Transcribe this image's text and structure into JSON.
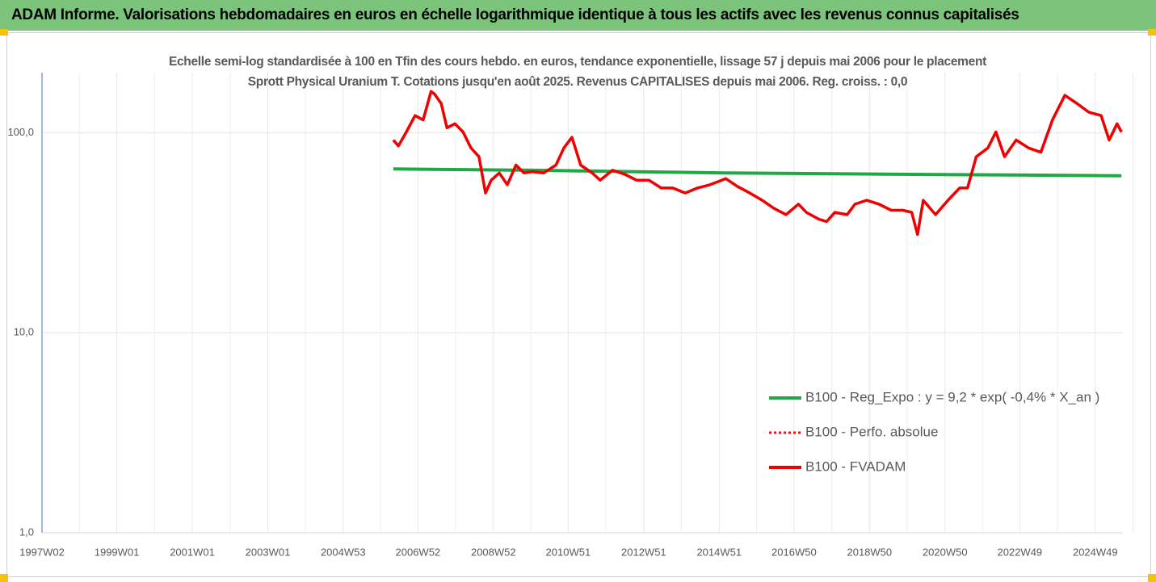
{
  "chart_data": {
    "type": "line",
    "title": "ADAM Informe. Valorisations hebdomadaires en euros en échelle logarithmique identique à tous les actifs avec les revenus connus capitalisés",
    "subtitle": "Echelle semi-log standardisée à 100 en Tfin des cours hebdo. en euros, tendance exponentielle, lissage 57 j depuis mai 2006 pour le placement Sprott Physical Uranium T. Cotations jusqu'en août 2025. Revenus CAPITALISES depuis mai 2006. Reg. croiss. : 0,0",
    "log_scale": true,
    "grid": true,
    "legend": "lower right",
    "ylim": [
      1,
      200
    ],
    "yticks": [
      {
        "value": 1,
        "label": "1,0"
      },
      {
        "value": 10,
        "label": "10,0"
      },
      {
        "value": 100,
        "label": "100,0"
      }
    ],
    "xlim": [
      "1997W02",
      "2025W35"
    ],
    "xticks": [
      "1997W02",
      "1999W01",
      "2001W01",
      "2003W01",
      "2004W53",
      "2006W52",
      "2008W52",
      "2010W51",
      "2012W51",
      "2014W51",
      "2016W50",
      "2018W50",
      "2020W50",
      "2022W49",
      "2024W49"
    ],
    "series": [
      {
        "name": "B100 - Reg_Expo : y = 9,2 * exp( -0,4% *  X_an )",
        "color": "#1fa846",
        "style": "solid",
        "x": [
          "2006W18",
          "2010W01",
          "2015W08",
          "2020W04",
          "2025W33"
        ],
        "values": [
          66,
          65,
          63,
          62,
          61
        ]
      },
      {
        "name": "B100 - Perfo. absolue",
        "color": "#e8141a",
        "style": "dotted",
        "x": [],
        "values": []
      },
      {
        "name": "B100 - FVADAM",
        "color": "#f00000",
        "style": "solid",
        "x": [
          "2006W18",
          "2006W25",
          "2006W36",
          "2006W48",
          "2007W07",
          "2007W18",
          "2007W23",
          "2007W32",
          "2007W40",
          "2007W51",
          "2008W10",
          "2008W21",
          "2008W32",
          "2008W41",
          "2008W49",
          "2009W08",
          "2009W19",
          "2009W31",
          "2009W42",
          "2010W01",
          "2010W17",
          "2010W34",
          "2010W45",
          "2011W04",
          "2011W16",
          "2011W32",
          "2011W43",
          "2012W08",
          "2012W25",
          "2012W41",
          "2013W06",
          "2013W23",
          "2013W39",
          "2014W04",
          "2014W21",
          "2014W38",
          "2015W08",
          "2015W24",
          "2015W41",
          "2016W06",
          "2016W22",
          "2016W39",
          "2017W04",
          "2017W15",
          "2017W32",
          "2017W43",
          "2018W02",
          "2018W19",
          "2018W30",
          "2018W46",
          "2019W11",
          "2019W28",
          "2019W44",
          "2020W04",
          "2020W12",
          "2020W20",
          "2020W37",
          "2021W02",
          "2021W18",
          "2021W29",
          "2021W41",
          "2022W05",
          "2022W16",
          "2022W28",
          "2022W44",
          "2023W09",
          "2023W26",
          "2023W42",
          "2024W07",
          "2024W24",
          "2024W40",
          "2025W05",
          "2025W16",
          "2025W27",
          "2025W33"
        ],
        "values": [
          92,
          86,
          101,
          122,
          116,
          161,
          156,
          140,
          106,
          111,
          101,
          84,
          76,
          50,
          58,
          63,
          55,
          69,
          63,
          64,
          63,
          69,
          84,
          95,
          69,
          63,
          58,
          65,
          62,
          58,
          58,
          53,
          53,
          50,
          53,
          55,
          59,
          54,
          50,
          46,
          42,
          39,
          44,
          40,
          37,
          36,
          40,
          39,
          44,
          46,
          44,
          41,
          41,
          40,
          31,
          46,
          39,
          46,
          53,
          53,
          76,
          84,
          101,
          76,
          92,
          84,
          80,
          116,
          154,
          140,
          127,
          122,
          92,
          111,
          101
        ]
      }
    ]
  }
}
